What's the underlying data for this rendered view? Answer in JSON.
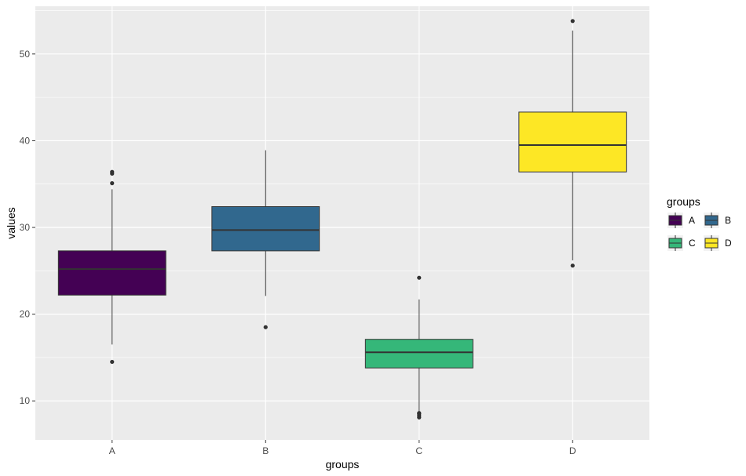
{
  "chart_data": {
    "type": "box",
    "xlabel": "groups",
    "ylabel": "values",
    "categories": [
      "A",
      "B",
      "C",
      "D"
    ],
    "ylim": [
      5.5,
      55.5
    ],
    "yticks": [
      10,
      20,
      30,
      40,
      50
    ],
    "grid": true,
    "legend": {
      "title": "groups",
      "placement": "right",
      "items": [
        "A",
        "B",
        "C",
        "D"
      ]
    },
    "colors": {
      "A": "#440154",
      "B": "#31688E",
      "C": "#35B779",
      "D": "#FDE725",
      "panel_bg": "#EBEBEB",
      "grid": "#FFFFFF",
      "outline": "#333333"
    },
    "boxes": [
      {
        "group": "A",
        "whisker_low": 16.5,
        "q1": 22.2,
        "median": 25.2,
        "q3": 27.3,
        "whisker_high": 34.4,
        "outliers": [
          14.5,
          35.1,
          36.2,
          36.4
        ]
      },
      {
        "group": "B",
        "whisker_low": 22.1,
        "q1": 27.3,
        "median": 29.7,
        "q3": 32.4,
        "whisker_high": 38.9,
        "outliers": [
          18.5
        ]
      },
      {
        "group": "C",
        "whisker_low": 8.8,
        "q1": 13.8,
        "median": 15.6,
        "q3": 17.1,
        "whisker_high": 21.7,
        "outliers": [
          8.1,
          8.3,
          8.5,
          8.6,
          24.2
        ]
      },
      {
        "group": "D",
        "whisker_low": 26.2,
        "q1": 36.4,
        "median": 39.5,
        "q3": 43.3,
        "whisker_high": 52.7,
        "outliers": [
          25.6,
          53.8
        ]
      }
    ]
  }
}
